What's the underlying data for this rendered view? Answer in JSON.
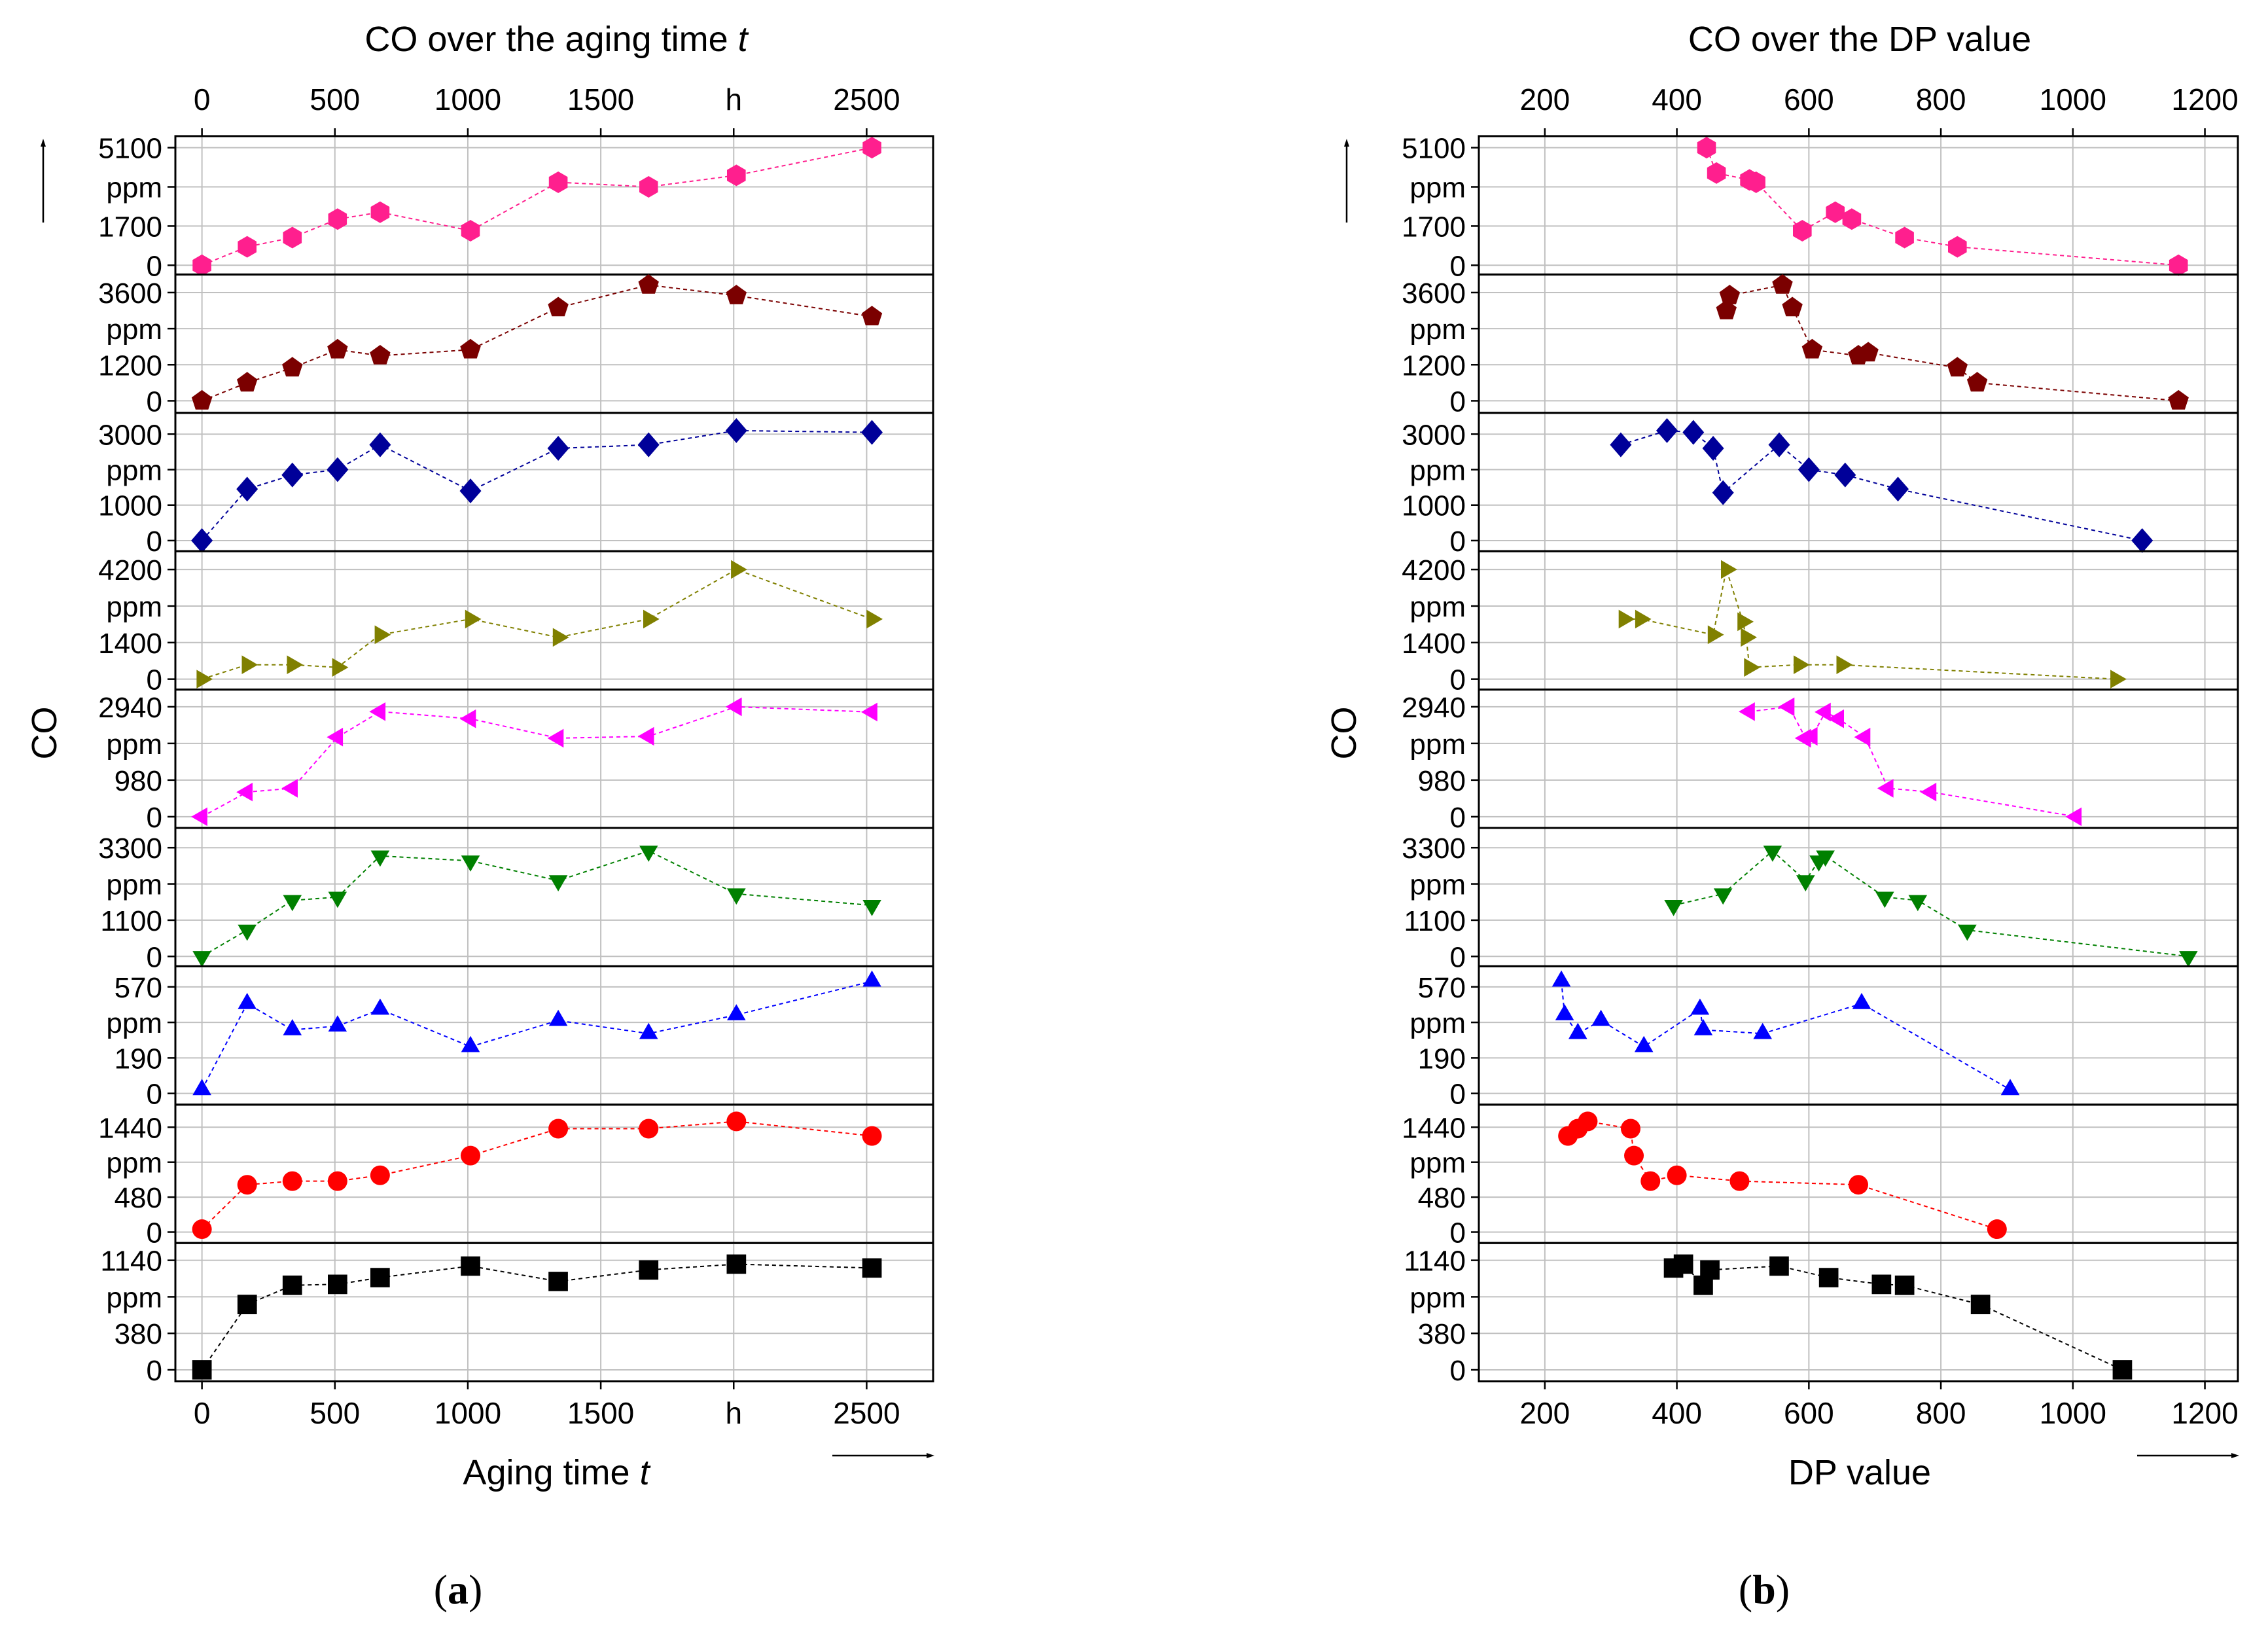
{
  "figure": {
    "label_a": "(a)",
    "label_b": "(b)",
    "letter_a": "a",
    "letter_b": "b"
  },
  "colors": {
    "s1": "#ff1f8e",
    "s2": "#7b0000",
    "s3": "#000099",
    "s4": "#808000",
    "s5": "#ff00ff",
    "s6": "#008000",
    "s7": "#0000ff",
    "s8": "#ff0000",
    "s9": "#000000",
    "grid": "#c0c0c0"
  },
  "chart_data": [
    {
      "type": "scatter",
      "id": "a",
      "title": "CO over the aging time t",
      "title_prefix": "CO over the aging time ",
      "title_italic": "t",
      "xlabel": "Aging time t",
      "xlabel_prefix": "Aging time ",
      "xlabel_italic": "t",
      "ylabel": "CO",
      "xlim": [
        -100,
        2750
      ],
      "xticks": [
        0,
        500,
        1000,
        1500,
        2000,
        2500
      ],
      "xtick_labels": [
        "0",
        "500",
        "1000",
        "1500",
        "h",
        "2500"
      ],
      "series": [
        {
          "name": "s1",
          "marker": "hexagon",
          "color_key": "s1",
          "ylim": [
            -400,
            5600
          ],
          "yticks": [
            "5100",
            "ppm",
            "1700",
            "0"
          ],
          "x": [
            0,
            170,
            340,
            510,
            670,
            1010,
            1340,
            1680,
            2010,
            2520
          ],
          "y": [
            0,
            800,
            1200,
            2000,
            2300,
            1500,
            3600,
            3400,
            3900,
            5100
          ]
        },
        {
          "name": "s2",
          "marker": "pentagon",
          "color_key": "s2",
          "ylim": [
            -400,
            4200
          ],
          "yticks": [
            "3600",
            "ppm",
            "1200",
            "0"
          ],
          "x": [
            0,
            170,
            340,
            510,
            670,
            1010,
            1340,
            1680,
            2010,
            2520
          ],
          "y": [
            0,
            600,
            1100,
            1700,
            1500,
            1700,
            3100,
            3850,
            3500,
            2800
          ]
        },
        {
          "name": "s3",
          "marker": "diamond",
          "color_key": "s3",
          "ylim": [
            -300,
            3600
          ],
          "yticks": [
            "3000",
            "ppm",
            "1000",
            "0"
          ],
          "x": [
            0,
            170,
            340,
            510,
            670,
            1010,
            1340,
            1680,
            2010,
            2520
          ],
          "y": [
            0,
            1450,
            1850,
            2000,
            2700,
            1400,
            2600,
            2700,
            3100,
            3050
          ]
        },
        {
          "name": "s4",
          "marker": "triangle-right",
          "color_key": "s4",
          "ylim": [
            -400,
            4900
          ],
          "yticks": [
            "4200",
            "ppm",
            "1400",
            "0"
          ],
          "x": [
            0,
            170,
            340,
            510,
            670,
            1010,
            1340,
            1680,
            2010,
            2520
          ],
          "y": [
            0,
            550,
            550,
            450,
            1700,
            2300,
            1600,
            2300,
            4200,
            2300
          ]
        },
        {
          "name": "s5",
          "marker": "triangle-left",
          "color_key": "s5",
          "ylim": [
            -300,
            3400
          ],
          "yticks": [
            "2940",
            "ppm",
            "980",
            "0"
          ],
          "x": [
            0,
            170,
            340,
            510,
            670,
            1010,
            1340,
            1680,
            2010,
            2520
          ],
          "y": [
            0,
            660,
            760,
            2130,
            2810,
            2620,
            2100,
            2150,
            2940,
            2800
          ]
        },
        {
          "name": "s6",
          "marker": "triangle-down",
          "color_key": "s6",
          "ylim": [
            -300,
            3900
          ],
          "yticks": [
            "3300",
            "ppm",
            "1100",
            "0"
          ],
          "x": [
            0,
            170,
            340,
            510,
            670,
            1010,
            1340,
            1680,
            2010,
            2520
          ],
          "y": [
            0,
            800,
            1700,
            1800,
            3050,
            2900,
            2300,
            3200,
            1900,
            1550
          ]
        },
        {
          "name": "s7",
          "marker": "triangle-up",
          "color_key": "s7",
          "ylim": [
            -60,
            680
          ],
          "yticks": [
            "570",
            "ppm",
            "190",
            "0"
          ],
          "x": [
            0,
            170,
            340,
            510,
            670,
            1010,
            1340,
            1680,
            2010,
            2520
          ],
          "y": [
            20,
            480,
            340,
            360,
            450,
            250,
            390,
            320,
            420,
            600
          ]
        },
        {
          "name": "s8",
          "marker": "circle",
          "color_key": "s8",
          "ylim": [
            -150,
            1750
          ],
          "yticks": [
            "1440",
            "ppm",
            "480",
            "0"
          ],
          "x": [
            0,
            170,
            340,
            510,
            670,
            1010,
            1340,
            1680,
            2010,
            2520
          ],
          "y": [
            40,
            650,
            700,
            700,
            780,
            1050,
            1420,
            1420,
            1520,
            1320
          ]
        },
        {
          "name": "s9",
          "marker": "square",
          "color_key": "s9",
          "ylim": [
            -120,
            1320
          ],
          "yticks": [
            "1140",
            "ppm",
            "380",
            "0"
          ],
          "x": [
            0,
            170,
            340,
            510,
            670,
            1010,
            1340,
            1680,
            2010,
            2520
          ],
          "y": [
            0,
            680,
            880,
            890,
            960,
            1080,
            920,
            1040,
            1100,
            1060
          ]
        }
      ]
    },
    {
      "type": "scatter",
      "id": "b",
      "title": "CO over the DP value",
      "xlabel": "DP value",
      "ylabel": "CO",
      "xlim": [
        100,
        1250
      ],
      "xticks": [
        200,
        400,
        600,
        800,
        1000,
        1200
      ],
      "xtick_labels": [
        "200",
        "400",
        "600",
        "800",
        "1000",
        "1200"
      ],
      "series": [
        {
          "name": "s1",
          "marker": "hexagon",
          "color_key": "s1",
          "ylim": [
            -400,
            5600
          ],
          "yticks": [
            "5100",
            "ppm",
            "1700",
            "0"
          ],
          "x": [
            445,
            460,
            510,
            520,
            590,
            640,
            665,
            745,
            825,
            1160
          ],
          "y": [
            5100,
            4000,
            3700,
            3600,
            1500,
            2300,
            2000,
            1200,
            800,
            0
          ]
        },
        {
          "name": "s2",
          "marker": "pentagon",
          "color_key": "s2",
          "ylim": [
            -400,
            4200
          ],
          "yticks": [
            "3600",
            "ppm",
            "1200",
            "0"
          ],
          "x": [
            475,
            480,
            560,
            575,
            605,
            675,
            690,
            825,
            855,
            1160
          ],
          "y": [
            3000,
            3500,
            3850,
            3100,
            1700,
            1500,
            1600,
            1100,
            600,
            0
          ]
        },
        {
          "name": "s3",
          "marker": "diamond",
          "color_key": "s3",
          "ylim": [
            -300,
            3600
          ],
          "yticks": [
            "3000",
            "ppm",
            "1000",
            "0"
          ],
          "x": [
            315,
            385,
            425,
            455,
            470,
            555,
            600,
            655,
            735,
            1105
          ],
          "y": [
            2700,
            3100,
            3050,
            2600,
            1350,
            2700,
            2000,
            1850,
            1450,
            0
          ]
        },
        {
          "name": "s4",
          "marker": "triangle-right",
          "color_key": "s4",
          "ylim": [
            -400,
            4900
          ],
          "yticks": [
            "4200",
            "ppm",
            "1400",
            "0"
          ],
          "x": [
            320,
            345,
            455,
            475,
            500,
            505,
            510,
            585,
            650,
            1065
          ],
          "y": [
            2300,
            2300,
            1700,
            4200,
            2200,
            1600,
            450,
            550,
            550,
            0
          ]
        },
        {
          "name": "s5",
          "marker": "triangle-left",
          "color_key": "s5",
          "ylim": [
            -300,
            3400
          ],
          "yticks": [
            "2940",
            "ppm",
            "980",
            "0"
          ],
          "x": [
            510,
            570,
            595,
            605,
            625,
            645,
            685,
            720,
            785,
            1005
          ],
          "y": [
            2810,
            2940,
            2100,
            2150,
            2800,
            2620,
            2130,
            760,
            660,
            0
          ]
        },
        {
          "name": "s6",
          "marker": "triangle-down",
          "color_key": "s6",
          "ylim": [
            -300,
            3900
          ],
          "yticks": [
            "3300",
            "ppm",
            "1100",
            "0"
          ],
          "x": [
            395,
            470,
            545,
            595,
            615,
            625,
            715,
            765,
            840,
            1175
          ],
          "y": [
            1550,
            1900,
            3200,
            2300,
            2900,
            3050,
            1800,
            1700,
            800,
            0
          ]
        },
        {
          "name": "s7",
          "marker": "triangle-up",
          "color_key": "s7",
          "ylim": [
            -60,
            680
          ],
          "yticks": [
            "570",
            "ppm",
            "190",
            "0"
          ],
          "x": [
            225,
            230,
            250,
            285,
            350,
            435,
            440,
            530,
            680,
            905
          ],
          "y": [
            600,
            420,
            320,
            390,
            250,
            450,
            340,
            320,
            480,
            20
          ]
        },
        {
          "name": "s8",
          "marker": "circle",
          "color_key": "s8",
          "ylim": [
            -150,
            1750
          ],
          "yticks": [
            "1440",
            "ppm",
            "480",
            "0"
          ],
          "x": [
            235,
            250,
            265,
            330,
            335,
            360,
            400,
            495,
            675,
            885
          ],
          "y": [
            1320,
            1420,
            1520,
            1420,
            1050,
            700,
            780,
            700,
            650,
            40
          ]
        },
        {
          "name": "s9",
          "marker": "square",
          "color_key": "s9",
          "ylim": [
            -120,
            1320
          ],
          "yticks": [
            "1140",
            "ppm",
            "380",
            "0"
          ],
          "x": [
            395,
            410,
            440,
            450,
            555,
            630,
            710,
            745,
            860,
            1075
          ],
          "y": [
            1060,
            1100,
            880,
            1040,
            1080,
            960,
            890,
            880,
            680,
            0
          ]
        }
      ]
    }
  ]
}
